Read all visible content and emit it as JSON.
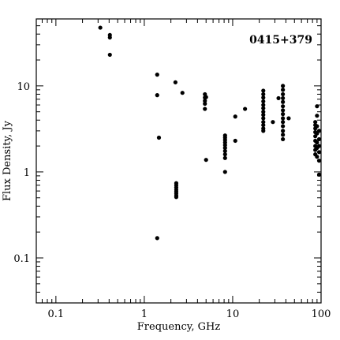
{
  "chart_data": {
    "type": "scatter",
    "title": "0415+379",
    "xlabel": "Frequency, GHz",
    "ylabel": "Flux Density, Jy",
    "xscale": "log",
    "yscale": "log",
    "xlim": [
      0.06,
      100
    ],
    "ylim": [
      0.03,
      60
    ],
    "grid": false,
    "x_ticks": [
      {
        "value": 0.1,
        "label": "0.1"
      },
      {
        "value": 1,
        "label": "1"
      },
      {
        "value": 10,
        "label": "10"
      },
      {
        "value": 100,
        "label": "100"
      }
    ],
    "y_ticks": [
      {
        "value": 0.1,
        "label": "0.1"
      },
      {
        "value": 1,
        "label": "1"
      },
      {
        "value": 10,
        "label": "10"
      }
    ],
    "points": [
      [
        0.318,
        47.5
      ],
      [
        0.408,
        39
      ],
      [
        0.408,
        36.5
      ],
      [
        0.408,
        23
      ],
      [
        1.4,
        13.5
      ],
      [
        1.4,
        7.8
      ],
      [
        1.4,
        0.17
      ],
      [
        1.465,
        2.5
      ],
      [
        2.25,
        11
      ],
      [
        2.7,
        8.3
      ],
      [
        2.3,
        0.74
      ],
      [
        2.3,
        0.7
      ],
      [
        2.3,
        0.66
      ],
      [
        2.3,
        0.62
      ],
      [
        2.3,
        0.59
      ],
      [
        2.3,
        0.56
      ],
      [
        2.3,
        0.53
      ],
      [
        2.3,
        0.51
      ],
      [
        4.85,
        8
      ],
      [
        4.85,
        7.3
      ],
      [
        4.85,
        6.7
      ],
      [
        4.85,
        6.2
      ],
      [
        4.85,
        5.4
      ],
      [
        5.0,
        7.4
      ],
      [
        5.0,
        1.38
      ],
      [
        8.2,
        2.65
      ],
      [
        8.2,
        2.5
      ],
      [
        8.2,
        2.35
      ],
      [
        8.2,
        2.2
      ],
      [
        8.2,
        2.05
      ],
      [
        8.2,
        1.9
      ],
      [
        8.2,
        1.75
      ],
      [
        8.2,
        1.6
      ],
      [
        8.2,
        1.45
      ],
      [
        8.2,
        1.0
      ],
      [
        10.7,
        4.4
      ],
      [
        10.7,
        2.3
      ],
      [
        13.8,
        5.4
      ],
      [
        22.2,
        8.8
      ],
      [
        22.2,
        8.0
      ],
      [
        22.2,
        7.3
      ],
      [
        22.2,
        6.6
      ],
      [
        22.2,
        6.0
      ],
      [
        22.2,
        5.5
      ],
      [
        22.2,
        5.0
      ],
      [
        22.2,
        4.6
      ],
      [
        22.2,
        4.2
      ],
      [
        22.2,
        3.8
      ],
      [
        22.2,
        3.5
      ],
      [
        22.2,
        3.2
      ],
      [
        22.2,
        3.0
      ],
      [
        28.5,
        3.8
      ],
      [
        33.0,
        7.2
      ],
      [
        37.0,
        10.0
      ],
      [
        37.0,
        9.0
      ],
      [
        37.0,
        8.0
      ],
      [
        37.0,
        7.2
      ],
      [
        37.0,
        6.5
      ],
      [
        37.0,
        5.8
      ],
      [
        37.0,
        5.2
      ],
      [
        37.0,
        4.7
      ],
      [
        37.0,
        4.2
      ],
      [
        37.0,
        3.8
      ],
      [
        37.0,
        3.4
      ],
      [
        37.0,
        3.0
      ],
      [
        37.0,
        2.7
      ],
      [
        37.0,
        2.4
      ],
      [
        43.0,
        4.2
      ],
      [
        86.0,
        3.8
      ],
      [
        86.0,
        3.5
      ],
      [
        86.0,
        3.2
      ],
      [
        86.0,
        2.9
      ],
      [
        86.0,
        2.6
      ],
      [
        86.0,
        2.3
      ],
      [
        86.0,
        2.0
      ],
      [
        86.0,
        1.8
      ],
      [
        86.0,
        1.6
      ],
      [
        90.0,
        5.8
      ],
      [
        90.0,
        4.5
      ],
      [
        90.0,
        3.4
      ],
      [
        90.0,
        2.8
      ],
      [
        90.0,
        2.2
      ],
      [
        90.0,
        1.9
      ],
      [
        90.0,
        1.5
      ],
      [
        95.0,
        3.0
      ],
      [
        95.0,
        2.4
      ],
      [
        95.0,
        2.0
      ],
      [
        95.0,
        1.7
      ],
      [
        95.0,
        1.35
      ],
      [
        95.0,
        0.93
      ]
    ]
  }
}
